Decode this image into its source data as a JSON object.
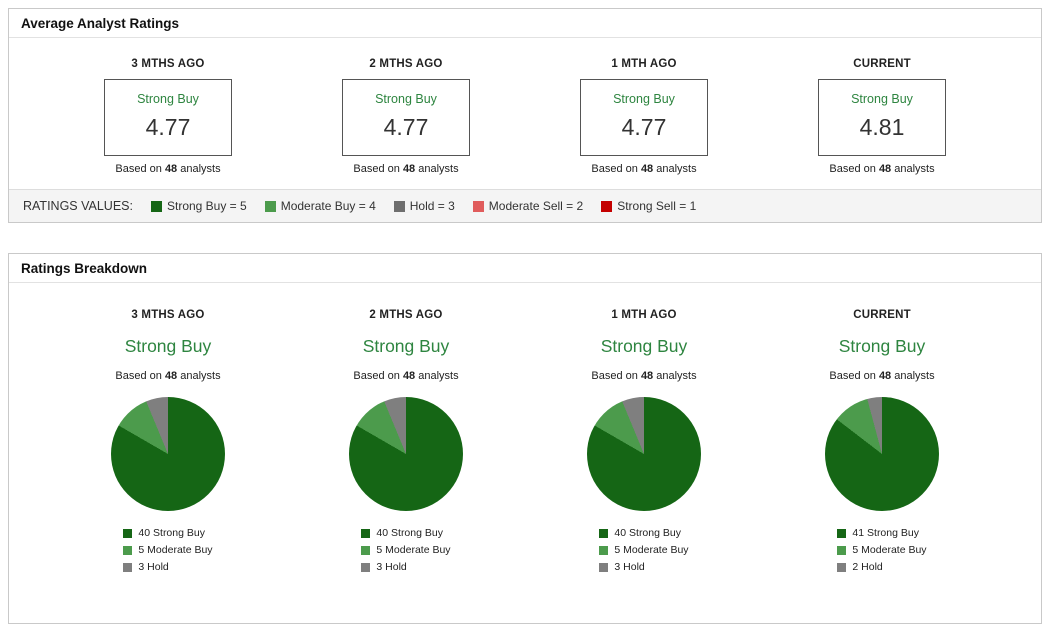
{
  "colors": {
    "rating_green": "#2e8540",
    "strong_buy": "#156615",
    "moderate_buy": "#4c9b4c",
    "hold": "#7f7f7f",
    "moderate_sell": "#e05c5c",
    "strong_sell": "#c40000"
  },
  "average_ratings": {
    "title": "Average Analyst Ratings",
    "columns": [
      {
        "period": "3 MTHS AGO",
        "rating": "Strong Buy",
        "value": "4.77",
        "based_prefix": "Based on",
        "analyst_count": "48",
        "based_suffix": "analysts"
      },
      {
        "period": "2 MTHS AGO",
        "rating": "Strong Buy",
        "value": "4.77",
        "based_prefix": "Based on",
        "analyst_count": "48",
        "based_suffix": "analysts"
      },
      {
        "period": "1 MTH AGO",
        "rating": "Strong Buy",
        "value": "4.77",
        "based_prefix": "Based on",
        "analyst_count": "48",
        "based_suffix": "analysts"
      },
      {
        "period": "CURRENT",
        "rating": "Strong Buy",
        "value": "4.81",
        "based_prefix": "Based on",
        "analyst_count": "48",
        "based_suffix": "analysts"
      }
    ],
    "legend": {
      "label": "RATINGS VALUES:",
      "items": [
        {
          "label": "Strong Buy = 5",
          "color": "#156615"
        },
        {
          "label": "Moderate Buy = 4",
          "color": "#4c9b4c"
        },
        {
          "label": "Hold = 3",
          "color": "#6e6e6e"
        },
        {
          "label": "Moderate Sell = 2",
          "color": "#e05c5c"
        },
        {
          "label": "Strong Sell = 1",
          "color": "#c40000"
        }
      ]
    }
  },
  "breakdown": {
    "title": "Ratings Breakdown",
    "columns": [
      {
        "period": "3 MTHS AGO",
        "rating": "Strong Buy",
        "based_prefix": "Based on",
        "analyst_count": "48",
        "based_suffix": "analysts",
        "legend": [
          {
            "label": "40 Strong Buy",
            "color": "#156615"
          },
          {
            "label": "5 Moderate Buy",
            "color": "#4c9b4c"
          },
          {
            "label": "3 Hold",
            "color": "#7f7f7f"
          }
        ]
      },
      {
        "period": "2 MTHS AGO",
        "rating": "Strong Buy",
        "based_prefix": "Based on",
        "analyst_count": "48",
        "based_suffix": "analysts",
        "legend": [
          {
            "label": "40 Strong Buy",
            "color": "#156615"
          },
          {
            "label": "5 Moderate Buy",
            "color": "#4c9b4c"
          },
          {
            "label": "3 Hold",
            "color": "#7f7f7f"
          }
        ]
      },
      {
        "period": "1 MTH AGO",
        "rating": "Strong Buy",
        "based_prefix": "Based on",
        "analyst_count": "48",
        "based_suffix": "analysts",
        "legend": [
          {
            "label": "40 Strong Buy",
            "color": "#156615"
          },
          {
            "label": "5 Moderate Buy",
            "color": "#4c9b4c"
          },
          {
            "label": "3 Hold",
            "color": "#7f7f7f"
          }
        ]
      },
      {
        "period": "CURRENT",
        "rating": "Strong Buy",
        "based_prefix": "Based on",
        "analyst_count": "48",
        "based_suffix": "analysts",
        "legend": [
          {
            "label": "41 Strong Buy",
            "color": "#156615"
          },
          {
            "label": "5 Moderate Buy",
            "color": "#4c9b4c"
          },
          {
            "label": "2 Hold",
            "color": "#7f7f7f"
          }
        ]
      }
    ]
  },
  "chart_data": [
    {
      "type": "pie",
      "title": "3 MTHS AGO",
      "labels": [
        "Strong Buy",
        "Moderate Buy",
        "Hold"
      ],
      "values": [
        40,
        5,
        3
      ],
      "colors": [
        "#156615",
        "#4c9b4c",
        "#7f7f7f"
      ],
      "total_analysts": 48
    },
    {
      "type": "pie",
      "title": "2 MTHS AGO",
      "labels": [
        "Strong Buy",
        "Moderate Buy",
        "Hold"
      ],
      "values": [
        40,
        5,
        3
      ],
      "colors": [
        "#156615",
        "#4c9b4c",
        "#7f7f7f"
      ],
      "total_analysts": 48
    },
    {
      "type": "pie",
      "title": "1 MTH AGO",
      "labels": [
        "Strong Buy",
        "Moderate Buy",
        "Hold"
      ],
      "values": [
        40,
        5,
        3
      ],
      "colors": [
        "#156615",
        "#4c9b4c",
        "#7f7f7f"
      ],
      "total_analysts": 48
    },
    {
      "type": "pie",
      "title": "CURRENT",
      "labels": [
        "Strong Buy",
        "Moderate Buy",
        "Hold"
      ],
      "values": [
        41,
        5,
        2
      ],
      "colors": [
        "#156615",
        "#4c9b4c",
        "#7f7f7f"
      ],
      "total_analysts": 48
    }
  ]
}
